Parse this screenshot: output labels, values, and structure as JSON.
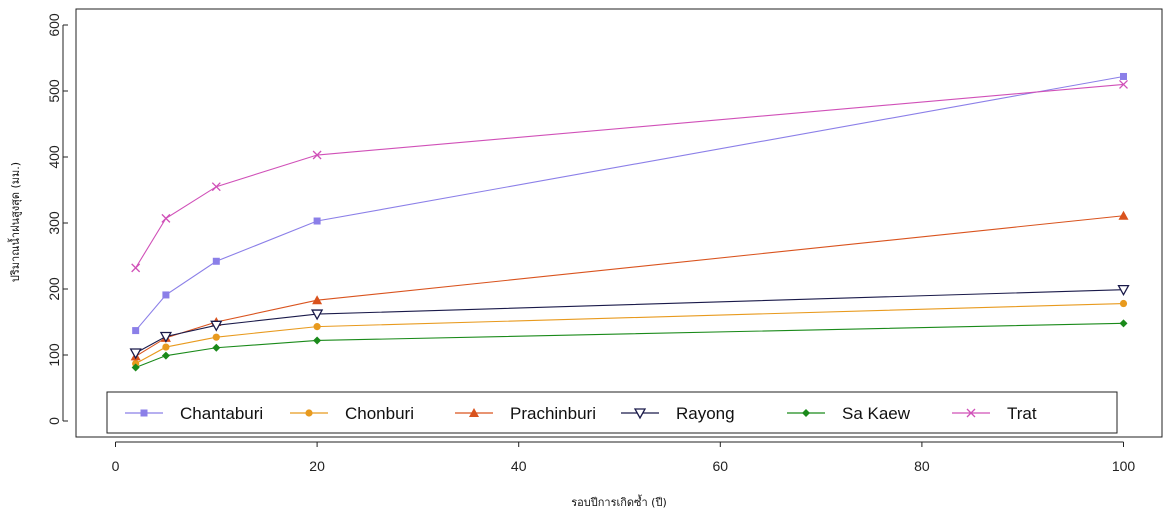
{
  "chart_data": {
    "type": "line",
    "xlabel": "รอบปีการเกิดซ้ำ (ปี)",
    "ylabel": "ปริมาณน้ำฝนสูงสุด (มม.)",
    "xlim": [
      0,
      100
    ],
    "ylim": [
      0,
      600
    ],
    "xticks": [
      0,
      20,
      40,
      60,
      80,
      100
    ],
    "yticks": [
      0,
      100,
      200,
      300,
      400,
      500,
      600
    ],
    "grid": false,
    "legend_position": "bottom",
    "x": [
      2,
      5,
      10,
      20,
      100
    ],
    "series": [
      {
        "name": "Chantaburi",
        "color": "#8b7fe8",
        "marker": "square",
        "values": [
          137,
          191,
          242,
          303,
          522
        ]
      },
      {
        "name": "Chonburi",
        "color": "#e89a1e",
        "marker": "circle",
        "values": [
          87,
          112,
          127,
          143,
          178
        ]
      },
      {
        "name": "Prachinburi",
        "color": "#d9531e",
        "marker": "triangle-up",
        "values": [
          98,
          126,
          150,
          183,
          311
        ]
      },
      {
        "name": "Rayong",
        "color": "#1a1a4a",
        "marker": "triangle-down",
        "values": [
          103,
          128,
          145,
          162,
          199
        ]
      },
      {
        "name": "Sa Kaew",
        "color": "#1a8a1a",
        "marker": "diamond",
        "values": [
          81,
          99,
          111,
          122,
          148
        ]
      },
      {
        "name": "Trat",
        "color": "#d050b8",
        "marker": "x",
        "values": [
          232,
          307,
          355,
          403,
          510
        ]
      }
    ]
  }
}
